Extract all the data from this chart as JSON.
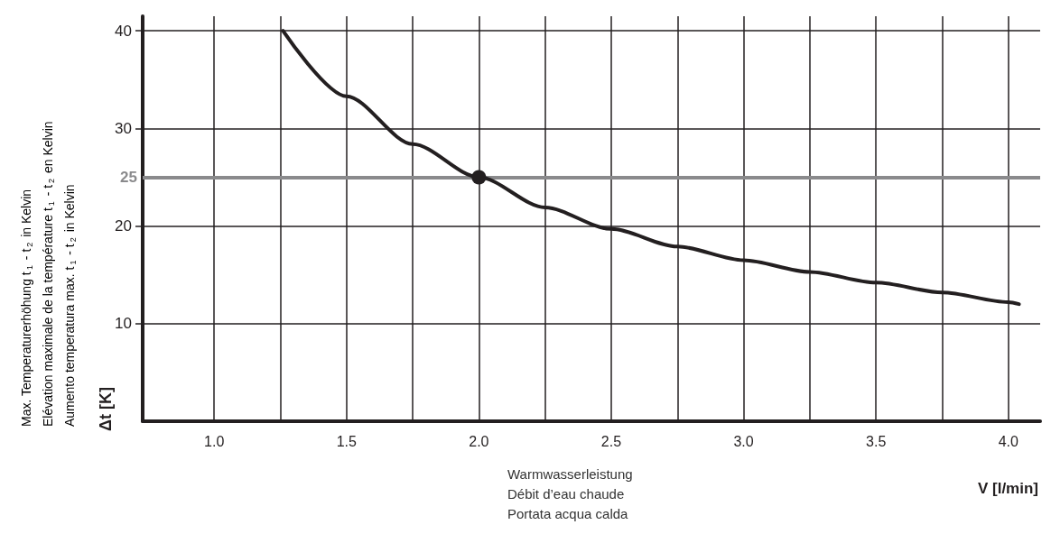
{
  "chart_data": {
    "type": "line",
    "xlabel": "V [l/min]",
    "ylabel": "Δt [K]",
    "annotations": [
      "Max. Temperaturerhöhung t$_{1}$ - t$_{2}$ in Kelvin",
      "Elévation maximale de la température t$_{1}$ - t$_{2}$ en Kelvin",
      "Aumento temperatura max. t$_{1}$ - t$_{2}$ in Kelvin",
      "Warmwasserleistung",
      "Débit d’eau chaude",
      "Portata acqua calda"
    ],
    "series": [
      {
        "color": "#231f20",
        "x": [
          1.26,
          1.5,
          1.75,
          2.0,
          2.25,
          2.5,
          2.75,
          3.0,
          3.25,
          3.5,
          3.75,
          4.0,
          4.04
        ],
        "values": [
          40,
          33.3,
          28.4,
          25,
          21.9,
          19.7,
          17.9,
          16.5,
          15.3,
          14.2,
          13.2,
          12.2,
          12.0
        ]
      },
      {
        "type": "scatter",
        "marker": "circle",
        "color": "#231f20",
        "x": [
          2.0
        ],
        "values": [
          25
        ]
      }
    ],
    "xlim": [
      0.73,
      4.12
    ],
    "ylim": [
      0,
      41.5
    ],
    "xticks": [
      {
        "value": 1,
        "label": "1.0"
      },
      {
        "value": 1.25,
        "label": null
      },
      {
        "value": 1.5,
        "label": "1.5"
      },
      {
        "value": 1.75,
        "label": null
      },
      {
        "value": 2,
        "label": "2.0"
      },
      {
        "value": 2.25,
        "label": null
      },
      {
        "value": 2.5,
        "label": "2.5"
      },
      {
        "value": 2.75,
        "label": null
      },
      {
        "value": 3,
        "label": "3.0"
      },
      {
        "value": 3.25,
        "label": null
      },
      {
        "value": 3.5,
        "label": "3.5"
      },
      {
        "value": 3.75,
        "label": null
      },
      {
        "value": 4,
        "label": "4.0"
      }
    ],
    "yticks": [
      10,
      20,
      30,
      40
    ],
    "grid": true,
    "ref_lines": [
      {
        "axis": "y",
        "value": 25,
        "label": "25",
        "color": "#8a8a8c"
      }
    ]
  }
}
